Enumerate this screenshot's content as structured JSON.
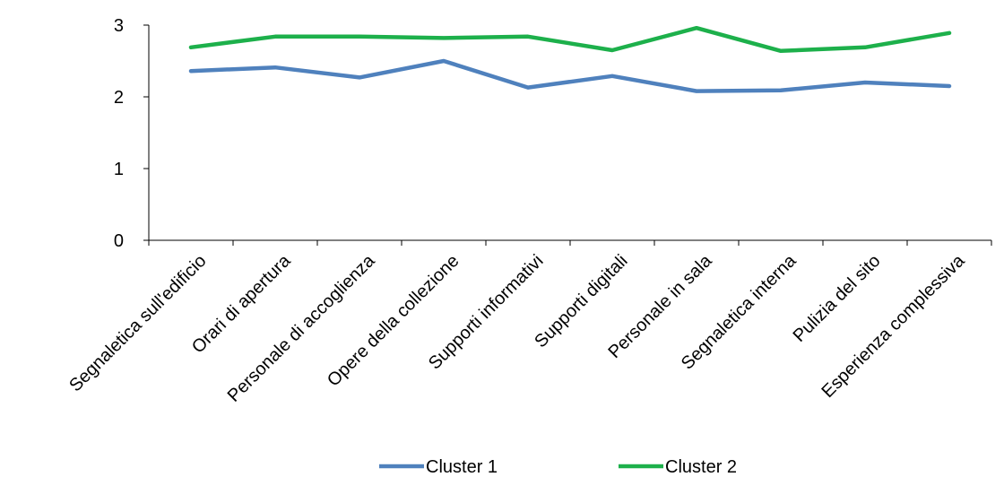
{
  "chart_data": {
    "type": "line",
    "title": "",
    "xlabel": "",
    "ylabel": "",
    "ylim": [
      0,
      3
    ],
    "yticks": [
      "0",
      "1",
      "2",
      "3"
    ],
    "grid": false,
    "legend_position": "bottom",
    "categories": [
      "Segnaletica sull'edificio",
      "Orari di apertura",
      "Personale di accoglienza",
      "Opere della collezione",
      "Supporti informativi",
      "Supporti digitali",
      "Personale in sala",
      "Segnaletica interna",
      "Pulizia del sito",
      "Esperienza complessiva"
    ],
    "series": [
      {
        "name": "Cluster 1",
        "color": "#4F81BD",
        "values": [
          2.36,
          2.41,
          2.27,
          2.5,
          2.13,
          2.29,
          2.08,
          2.09,
          2.2,
          2.15
        ]
      },
      {
        "name": "Cluster 2",
        "color": "#1DB04B",
        "values": [
          2.69,
          2.84,
          2.84,
          2.82,
          2.84,
          2.65,
          2.96,
          2.64,
          2.69,
          2.89
        ]
      }
    ]
  }
}
